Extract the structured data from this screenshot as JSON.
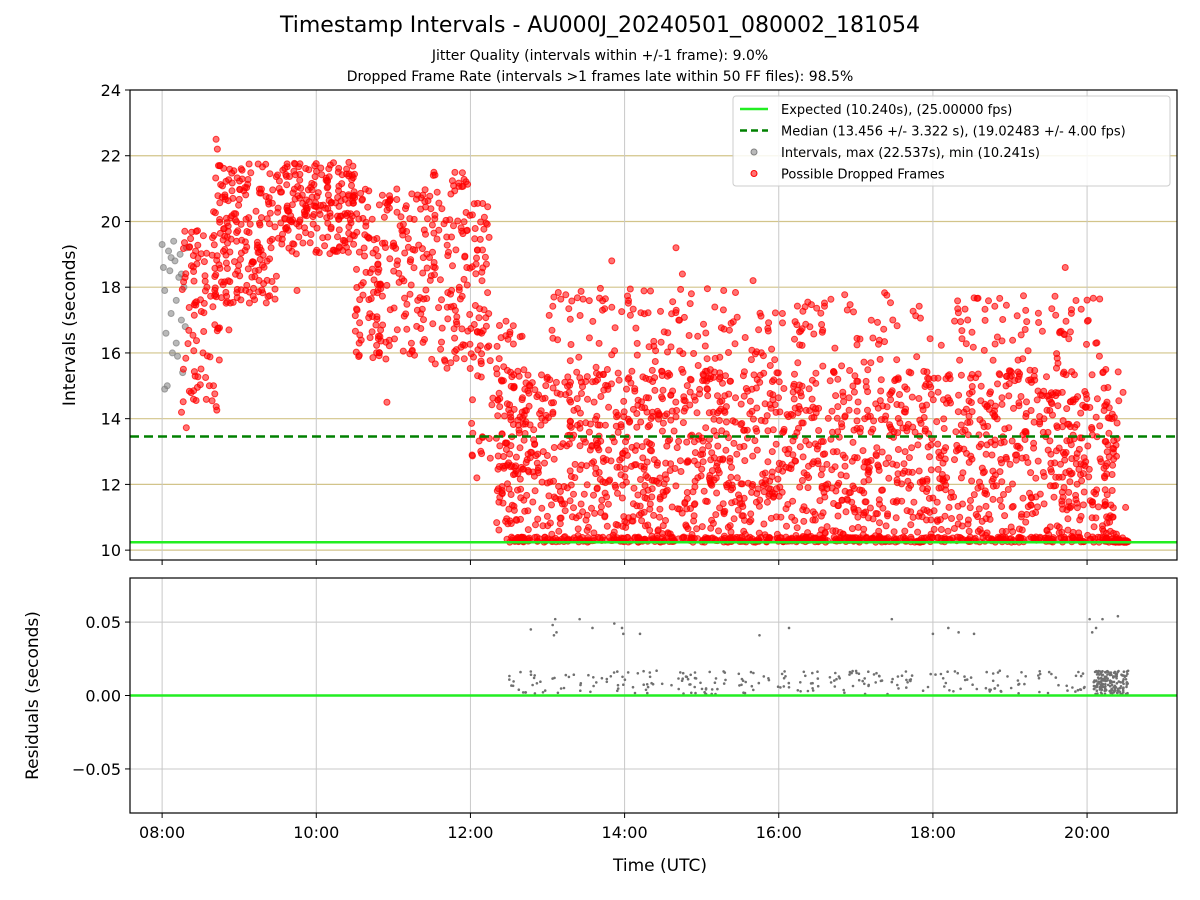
{
  "header": {
    "title": "Timestamp Intervals - AU000J_20240501_080002_181054",
    "subtitle1": "Jitter Quality (intervals within +/-1 frame): 9.0%",
    "subtitle2": "Dropped Frame Rate (intervals >1 frames late within 50 FF files): 98.5%"
  },
  "colors": {
    "expected": "#22ee22",
    "median": "#008000",
    "normal": "#808080",
    "dropped": "#ff0000",
    "hgrid": "#d2c48a",
    "vgrid": "#c8c8c8",
    "residual": "#707070"
  },
  "chart_data": [
    {
      "type": "scatter",
      "ylabel": "Intervals (seconds)",
      "xlabel": "",
      "xlim": [
        "07:35",
        "21:10"
      ],
      "ylim": [
        9.7,
        24
      ],
      "yticks": [
        10,
        12,
        14,
        16,
        18,
        20,
        22,
        24
      ],
      "ytick_labels": [
        "10",
        "12",
        "14",
        "16",
        "18",
        "20",
        "22",
        "24"
      ],
      "xticks": [
        "08:00",
        "10:00",
        "12:00",
        "14:00",
        "16:00",
        "18:00",
        "20:00"
      ],
      "hgrid": true,
      "vgrid": true,
      "expected_line": 10.24,
      "median_line": 13.456,
      "legend_position": "top-right",
      "legend": [
        "Expected (10.240s), (25.00000 fps)",
        "Median (13.456 +/- 3.322 s), (19.02483 +/- 4.00 fps)",
        "Intervals, max (22.537s), min (10.241s)",
        "Possible Dropped Frames"
      ],
      "series": [
        {
          "name": "Intervals, max (22.537s), min (10.241s)",
          "points": [
            [
              "08:00",
              19.3
            ],
            [
              "08:01",
              18.6
            ],
            [
              "08:02",
              17.9
            ],
            [
              "08:03",
              16.6
            ],
            [
              "08:04",
              15.0
            ],
            [
              "08:05",
              19.1
            ],
            [
              "08:06",
              18.5
            ],
            [
              "08:07",
              17.2
            ],
            [
              "08:08",
              16.0
            ],
            [
              "08:09",
              19.4
            ],
            [
              "08:10",
              18.8
            ],
            [
              "08:11",
              17.6
            ],
            [
              "08:12",
              15.9
            ],
            [
              "08:13",
              18.3
            ],
            [
              "08:14",
              19.0
            ],
            [
              "08:15",
              17.0
            ],
            [
              "08:16",
              15.4
            ],
            [
              "08:17",
              18.0
            ],
            [
              "08:18",
              16.8
            ],
            [
              "08:19",
              19.2
            ],
            [
              "08:02",
              14.9
            ],
            [
              "08:07",
              18.9
            ],
            [
              "08:11",
              16.3
            ],
            [
              "08:15",
              18.4
            ]
          ]
        },
        {
          "name": "Possible Dropped Frames",
          "segments": [
            {
              "t0": "08:15",
              "t1": "08:45",
              "y_low": 13.7,
              "y_high": 19.8,
              "count": 90
            },
            {
              "t0": "08:40",
              "t1": "09:30",
              "y_low": 17.5,
              "y_high": 21.8,
              "count": 180
            },
            {
              "t0": "09:30",
              "t1": "10:30",
              "y_low": 19.0,
              "y_high": 21.8,
              "count": 200
            },
            {
              "t0": "10:30",
              "t1": "11:30",
              "y_low": 15.8,
              "y_high": 21.0,
              "count": 190
            },
            {
              "t0": "11:30",
              "t1": "12:15",
              "y_low": 15.5,
              "y_high": 21.5,
              "count": 140
            },
            {
              "t0": "12:00",
              "t1": "12:45",
              "y_low": 12.2,
              "y_high": 17.0,
              "count": 60
            },
            {
              "t0": "12:20",
              "t1": "20:25",
              "y_low": 10.24,
              "y_high": 15.5,
              "count": 1700
            },
            {
              "t0": "12:30",
              "t1": "20:30",
              "y_low": 10.24,
              "y_high": 10.4,
              "count": 420
            },
            {
              "t0": "13:00",
              "t1": "20:10",
              "y_low": 15.5,
              "y_high": 18.0,
              "count": 240
            },
            {
              "t0": "20:20",
              "t1": "20:32",
              "y_low": 10.24,
              "y_high": 10.3,
              "count": 60
            }
          ],
          "outliers": [
            [
              "08:42",
              22.5
            ],
            [
              "08:43",
              22.2
            ],
            [
              "08:45",
              21.7
            ],
            [
              "13:50",
              18.8
            ],
            [
              "14:40",
              19.2
            ],
            [
              "14:45",
              18.4
            ],
            [
              "15:40",
              18.2
            ],
            [
              "19:43",
              18.6
            ],
            [
              "13:05",
              17.7
            ],
            [
              "10:55",
              14.5
            ],
            [
              "08:52",
              16.7
            ],
            [
              "09:45",
              17.9
            ],
            [
              "12:05",
              12.2
            ],
            [
              "20:28",
              14.8
            ],
            [
              "20:30",
              11.3
            ]
          ]
        }
      ]
    },
    {
      "type": "scatter",
      "ylabel": "Residuals (seconds)",
      "xlabel": "Time (UTC)",
      "xlim": [
        "07:35",
        "21:10"
      ],
      "ylim": [
        -0.08,
        0.08
      ],
      "yticks": [
        -0.05,
        0.0,
        0.05
      ],
      "ytick_labels": [
        "−0.05",
        "0.00",
        "0.05"
      ],
      "xticks": [
        "08:00",
        "10:00",
        "12:00",
        "14:00",
        "16:00",
        "18:00",
        "20:00"
      ],
      "grid": true,
      "zero_line": 0.0,
      "series": [
        {
          "name": "",
          "range": {
            "t0": "12:30",
            "t1": "20:10",
            "y_low": 0.001,
            "y_high": 0.017,
            "count": 260
          },
          "cluster": {
            "t0": "20:05",
            "t1": "20:32",
            "y_low": 0.001,
            "y_high": 0.017,
            "count": 160
          },
          "outliers": [
            [
              "12:47",
              0.045
            ],
            [
              "13:04",
              0.048
            ],
            [
              "13:06",
              0.052
            ],
            [
              "13:07",
              0.043
            ],
            [
              "13:05",
              0.041
            ],
            [
              "13:25",
              0.052
            ],
            [
              "13:35",
              0.046
            ],
            [
              "13:52",
              0.049
            ],
            [
              "13:58",
              0.046
            ],
            [
              "13:59",
              0.042
            ],
            [
              "14:12",
              0.042
            ],
            [
              "15:45",
              0.041
            ],
            [
              "16:08",
              0.046
            ],
            [
              "17:28",
              0.052
            ],
            [
              "18:00",
              0.042
            ],
            [
              "18:12",
              0.046
            ],
            [
              "18:20",
              0.043
            ],
            [
              "18:32",
              0.042
            ],
            [
              "20:02",
              0.052
            ],
            [
              "20:04",
              0.043
            ],
            [
              "20:07",
              0.046
            ],
            [
              "20:12",
              0.052
            ],
            [
              "20:24",
              0.054
            ]
          ]
        }
      ]
    }
  ]
}
